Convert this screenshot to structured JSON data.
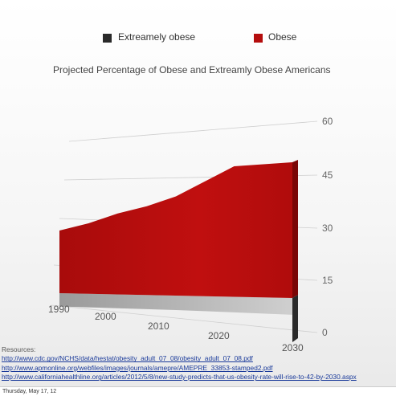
{
  "legend": [
    {
      "label": "Extreamely obese",
      "color": "#2a2a2a"
    },
    {
      "label": "Obese",
      "color": "#b40d0d"
    }
  ],
  "chart_data": {
    "type": "area",
    "title": "Projected Percentage of Obese and Extreamly Obese Americans",
    "x": [
      1990,
      1995,
      2000,
      2005,
      2010,
      2015,
      2020,
      2025,
      2030
    ],
    "x_tick_labels": [
      "1990",
      "2000",
      "2010",
      "2020",
      "2030"
    ],
    "y_tick_labels": [
      "0",
      "15",
      "30",
      "45",
      "60"
    ],
    "ylim": [
      0,
      60
    ],
    "grid": true,
    "legend_position": "top",
    "series": [
      {
        "name": "Extreamely obese",
        "color": "#2a2a2a",
        "values": [
          5,
          5.4,
          5.8,
          6.2,
          6.6,
          7.4,
          8.2,
          9.0,
          9.8
        ]
      },
      {
        "name": "Obese",
        "color": "#b40d0d",
        "values": [
          24,
          27,
          31,
          34,
          38,
          44,
          50,
          51,
          52
        ]
      }
    ]
  },
  "resources": {
    "heading": "Resources:",
    "links": [
      "http://www.cdc.gov/NCHS/data/hestat/obesity_adult_07_08/obesity_adult_07_08.pdf",
      "http://www.apmonline.org/webfiles/images/journals/amepre/AMEPRE_33853-stamped2.pdf",
      "http://www.californiahealthline.org/articles/2012/5/8/new-study-predicts-that-us-obesity-rate-will-rise-to-42-by-2030.aspx"
    ]
  },
  "footer": {
    "date": "Thursday, May 17, 12"
  }
}
